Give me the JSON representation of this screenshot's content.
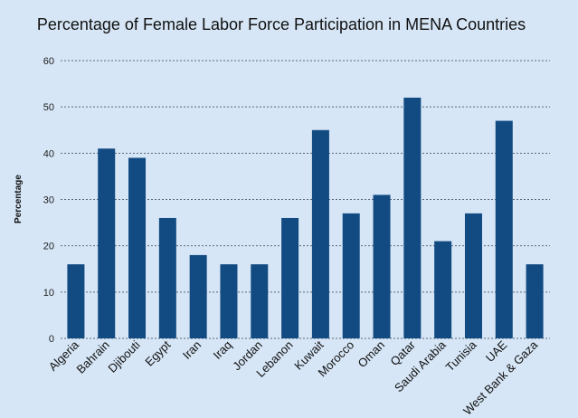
{
  "chart_data": {
    "type": "bar",
    "title": "Percentage of Female Labor Force Participation in MENA Countries",
    "xlabel": "",
    "ylabel": "Percentage",
    "ylim": [
      0,
      60
    ],
    "yticks": [
      0,
      10,
      20,
      30,
      40,
      50,
      60
    ],
    "grid": true,
    "bar_color": "#124a82",
    "background_color": "#d6e6f6",
    "categories": [
      "Algeria",
      "Bahrain",
      "Djibouti",
      "Egypt",
      "Iran",
      "Iraq",
      "Jordan",
      "Lebanon",
      "Kuwait",
      "Morocco",
      "Oman",
      "Qatar",
      "Saudi Arabia",
      "Tunisia",
      "UAE",
      "West Bank & Gaza"
    ],
    "values": [
      16,
      41,
      39,
      26,
      18,
      16,
      16,
      26,
      45,
      27,
      31,
      52,
      21,
      27,
      47,
      16
    ]
  }
}
